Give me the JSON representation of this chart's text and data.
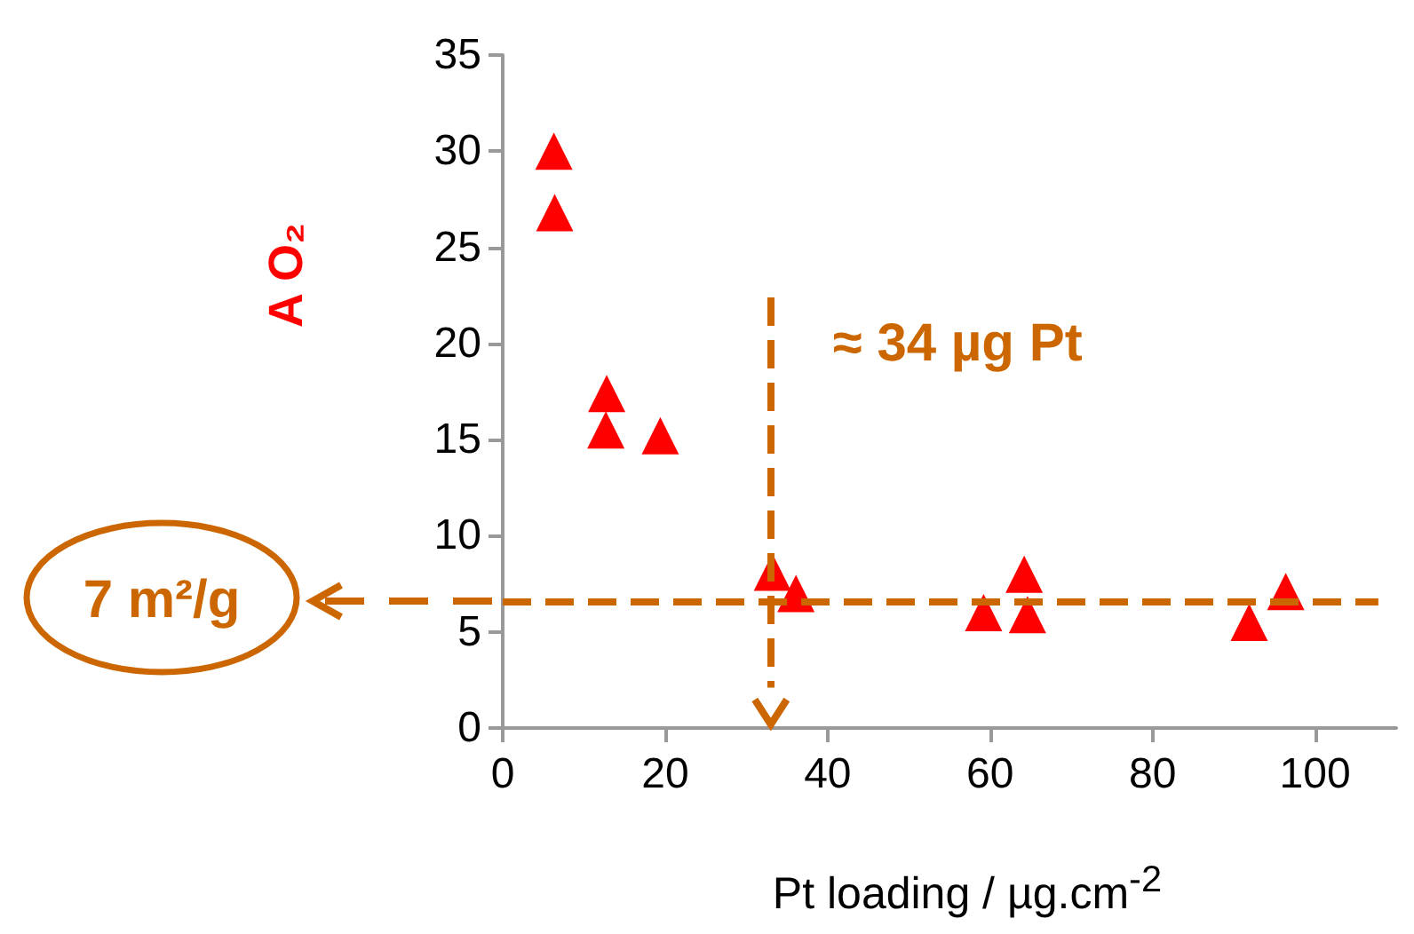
{
  "chart_data": {
    "type": "scatter",
    "xlabel": "Pt loading  / µg.cm$^{-2}$",
    "ylabel": "A O₂",
    "x": [
      6.3,
      6.4,
      12.8,
      12.7,
      19.4,
      33.2,
      36.1,
      59.2,
      64.2,
      64.6,
      91.9,
      96.4
    ],
    "series": [
      {
        "color": "#ff0000",
        "values": [
          30.0,
          26.8,
          17.4,
          15.5,
          15.2,
          8.1,
          7.0,
          6.0,
          8.0,
          5.9,
          5.5,
          7.1
        ]
      }
    ],
    "marker": "triangle",
    "xlim": [
      0,
      110
    ],
    "xticks": [
      0,
      20,
      40,
      60,
      80,
      100
    ],
    "ylim": [
      0,
      35
    ],
    "yticks": [
      0,
      5,
      10,
      15,
      20,
      25,
      30,
      35
    ],
    "grid": false,
    "ref_lines": [
      {
        "axis": "y",
        "value": 6.6,
        "label": "7 m²/g",
        "color": "#cc6600",
        "line_style": "dashed"
      },
      {
        "axis": "x",
        "value": 33,
        "label": "≈ 34 µg Pt",
        "color": "#cc6600",
        "line_style": "dashed"
      }
    ]
  }
}
